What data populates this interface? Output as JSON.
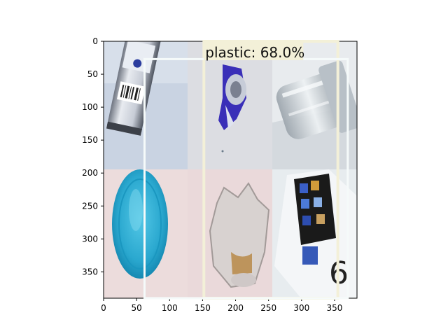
{
  "axes": {
    "x_ticks": [
      0,
      50,
      100,
      150,
      200,
      250,
      300,
      350
    ],
    "y_ticks": [
      0,
      50,
      100,
      150,
      200,
      250,
      300,
      350
    ],
    "x_range": [
      0,
      384
    ],
    "y_range": [
      390,
      0
    ]
  },
  "image": {
    "description_tiles": [
      "aluminum-can",
      "crushed-foil-wrapper",
      "glass-jar",
      "blue-plastic-lid",
      "clear-plastic-bottle-bottom",
      "printed-carton"
    ]
  },
  "detections": [
    {
      "label_text": "plastic: 68.0%",
      "box_data": [
        62,
        27,
        370,
        390
      ],
      "box_color": "#f5fafa"
    }
  ],
  "overlay": {
    "band_color": "#f3f0d8"
  }
}
